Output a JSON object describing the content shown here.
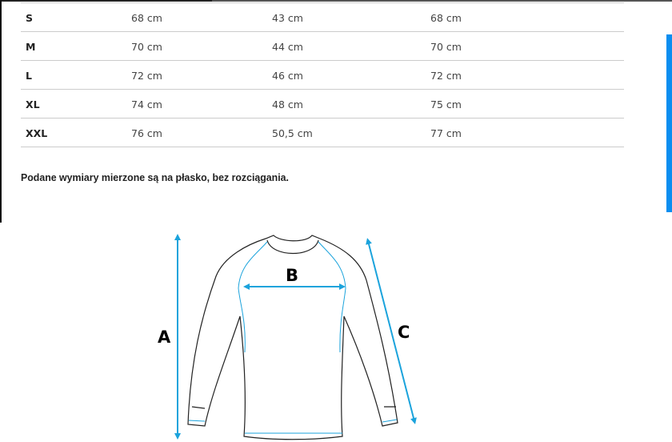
{
  "size_table": {
    "rows": [
      {
        "size": "S",
        "a": "68 cm",
        "b": "43 cm",
        "c": "68 cm"
      },
      {
        "size": "M",
        "a": "70 cm",
        "b": "44 cm",
        "c": "70 cm"
      },
      {
        "size": "L",
        "a": "72 cm",
        "b": "46 cm",
        "c": "72 cm"
      },
      {
        "size": "XL",
        "a": "74 cm",
        "b": "48 cm",
        "c": "75 cm"
      },
      {
        "size": "XXL",
        "a": "76 cm",
        "b": "50,5 cm",
        "c": "77 cm"
      }
    ]
  },
  "note": "Podane wymiary mierzone są na płasko, bez rozciągania.",
  "diagram": {
    "label_a": "A",
    "label_b": "B",
    "label_c": "C",
    "accent_color": "#1ba3dc"
  }
}
